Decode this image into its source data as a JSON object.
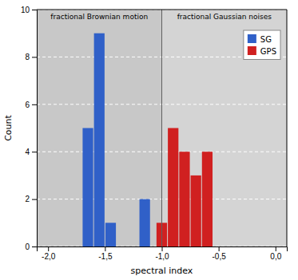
{
  "chart_data": {
    "type": "histogram",
    "xlabel": "spectral index",
    "ylabel": "Count",
    "series": [
      {
        "name": "SG",
        "color": "#3060C8",
        "x_left": [
          -1.7,
          -1.6,
          -1.5,
          -1.2
        ],
        "x_right": [
          -1.6,
          -1.5,
          -1.4,
          -1.1
        ],
        "values": [
          5,
          9,
          1,
          2
        ]
      },
      {
        "name": "GPS",
        "color": "#D02020",
        "x_left": [
          -1.05,
          -0.95,
          -0.85,
          -0.75,
          -0.65
        ],
        "x_right": [
          -0.95,
          -0.85,
          -0.75,
          -0.65,
          -0.55
        ],
        "values": [
          1,
          5,
          4,
          3,
          4
        ]
      }
    ],
    "regions": [
      {
        "label": "fractional Brownian motion",
        "x_left": -2.1,
        "x_right": -1.0,
        "color": "#C8C8C8"
      },
      {
        "label": "fractional Gaussian noises",
        "x_left": -1.0,
        "x_right": 0.1,
        "color": "#D4D4D4"
      }
    ],
    "xlim": [
      -2.1,
      0.1
    ],
    "xticks": [
      {
        "value": -2.0,
        "label": "-2,0"
      },
      {
        "value": -1.5,
        "label": "-1,5"
      },
      {
        "value": -1.0,
        "label": "-1,0"
      },
      {
        "value": -0.5,
        "label": "-0,5"
      },
      {
        "value": 0.0,
        "label": "0,0"
      }
    ],
    "ylim": [
      0,
      10
    ],
    "yticks": [
      0,
      2,
      4,
      6,
      8,
      10
    ],
    "grid": true,
    "legend": "upper right"
  }
}
